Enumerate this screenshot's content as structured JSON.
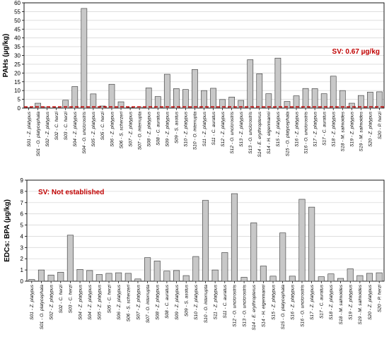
{
  "colors": {
    "bar_fill": "#c8c8c8",
    "bar_stroke": "#333333",
    "sv_line": "#c00000",
    "grid": "#d9d9d9"
  },
  "chart_data": [
    {
      "type": "bar",
      "ylabel": "PAHs (µg/kg)",
      "ylim": [
        0,
        60
      ],
      "yticks": [
        0,
        5,
        10,
        15,
        20,
        25,
        30,
        35,
        40,
        45,
        50,
        55,
        60
      ],
      "grid": true,
      "reference_line": {
        "value": 0.67,
        "label": "SV: 0.67 µg/kg",
        "style": "dashed"
      },
      "categories": [
        "S01 - Z. platypus",
        "S01 - O. platycephala",
        "S02 - Z. platypus",
        "S02 - C. herzi",
        "S03 - C. herzi",
        "S04 - Z. platypus",
        "S04 - O. uncicrostris",
        "S05 - Z. platypus",
        "S05 - C. herzi",
        "S06 - Z. platypus",
        "S06 - S. scherzeri",
        "S07 - Z. platypus",
        "S07 - O. interrupta",
        "S08 - Z. platypus",
        "S08 - C. auratus",
        "S09 - Z. platypus",
        "S09 - S. asotus",
        "S10 - Z. platypus",
        "S10 - O. interrupta",
        "S11 - Z. platypus",
        "S11 - C. auratus",
        "S12 - Z. platypus",
        "S12 - O. uncicrostris",
        "S13 - Z. platypus",
        "S13 - O. uncicrostris",
        "S14 - E. erythropterus",
        "S14 - H. eigenmanni",
        "S15 - Z. platypus",
        "S15 - O. platycephala",
        "S16 - Z. platypus",
        "S16 - O. uncicrostris",
        "S17 - Z. platypus",
        "S17 - C. auratus",
        "S18 - Z. platypus",
        "S18 - M. salmoides",
        "S19 - Z. platypus",
        "S19 - M. salmoides",
        "S20 - Z. platypus",
        "S20 - P. herzi"
      ],
      "values": [
        0.3,
        2.8,
        0.5,
        0.2,
        4.5,
        12.3,
        56.8,
        8.1,
        1.2,
        13.6,
        3.6,
        0.3,
        0.5,
        11.5,
        6.6,
        19.3,
        11.1,
        10.6,
        22.0,
        10.0,
        11.3,
        4.9,
        6.3,
        4.4,
        27.6,
        19.6,
        8.2,
        28.5,
        3.8,
        7.0,
        11.2,
        11.1,
        8.2,
        18.2,
        10.0,
        2.8,
        7.2,
        9.1,
        9.3
      ]
    },
    {
      "type": "bar",
      "ylabel": "EDCs: BPA (µg/kg)",
      "ylim": [
        0,
        9
      ],
      "yticks": [
        0,
        1,
        2,
        3,
        4,
        5,
        6,
        7,
        8,
        9
      ],
      "grid": true,
      "annotation": "SV: Not established",
      "categories": [
        "S01 - Z. platypus",
        "S01 - O. platycephala",
        "S02 - Z. platypus",
        "S02 - C. herzi",
        "S03 - C. herzi",
        "S04 - Z. platypus",
        "S04 - Z. platypus",
        "S05 - Z. platypus",
        "S05 - C. herzi",
        "S06 - Z. platypus",
        "S06 - S. scherzeri",
        "S07 - Z. platypus",
        "S07 - O. interrupta",
        "S08 - Z. platypus",
        "S08 - C. auratus",
        "S09 - Z. platypus",
        "S09 - S. asotus",
        "S10 - Z. platypus",
        "S10 - O. interrupta",
        "S11 - Z. platypus",
        "S11 - C. auratus",
        "S12 - O. uncicrostris",
        "S13 - O. uncicrostris",
        "S14 - E. erythropterus",
        "S14 - H. eigenmanni",
        "S15 - Z. platypus",
        "S15 - O. platycephala",
        "S16 - Z. platypus",
        "S16 - O. uncicrostris",
        "S17 - Z. platypus",
        "S17 - C. auratus",
        "S18 - Z. platypus",
        "S18 - M. salmoides",
        "S19 - Z. platypus",
        "S19 - M. salmoides",
        "S20 - Z. platypus",
        "S20 - P. herzi"
      ],
      "values": [
        0.15,
        1.0,
        0.55,
        0.8,
        4.1,
        1.05,
        0.95,
        0.6,
        0.7,
        0.75,
        0.7,
        0.2,
        2.1,
        1.8,
        0.9,
        0.95,
        0.5,
        2.2,
        7.2,
        1.0,
        2.55,
        7.8,
        0.35,
        5.2,
        1.35,
        0.45,
        4.3,
        0.45,
        7.3,
        6.6,
        0.4,
        0.65,
        0.25,
        1.1,
        0.5,
        0.7,
        0.75
      ]
    }
  ]
}
